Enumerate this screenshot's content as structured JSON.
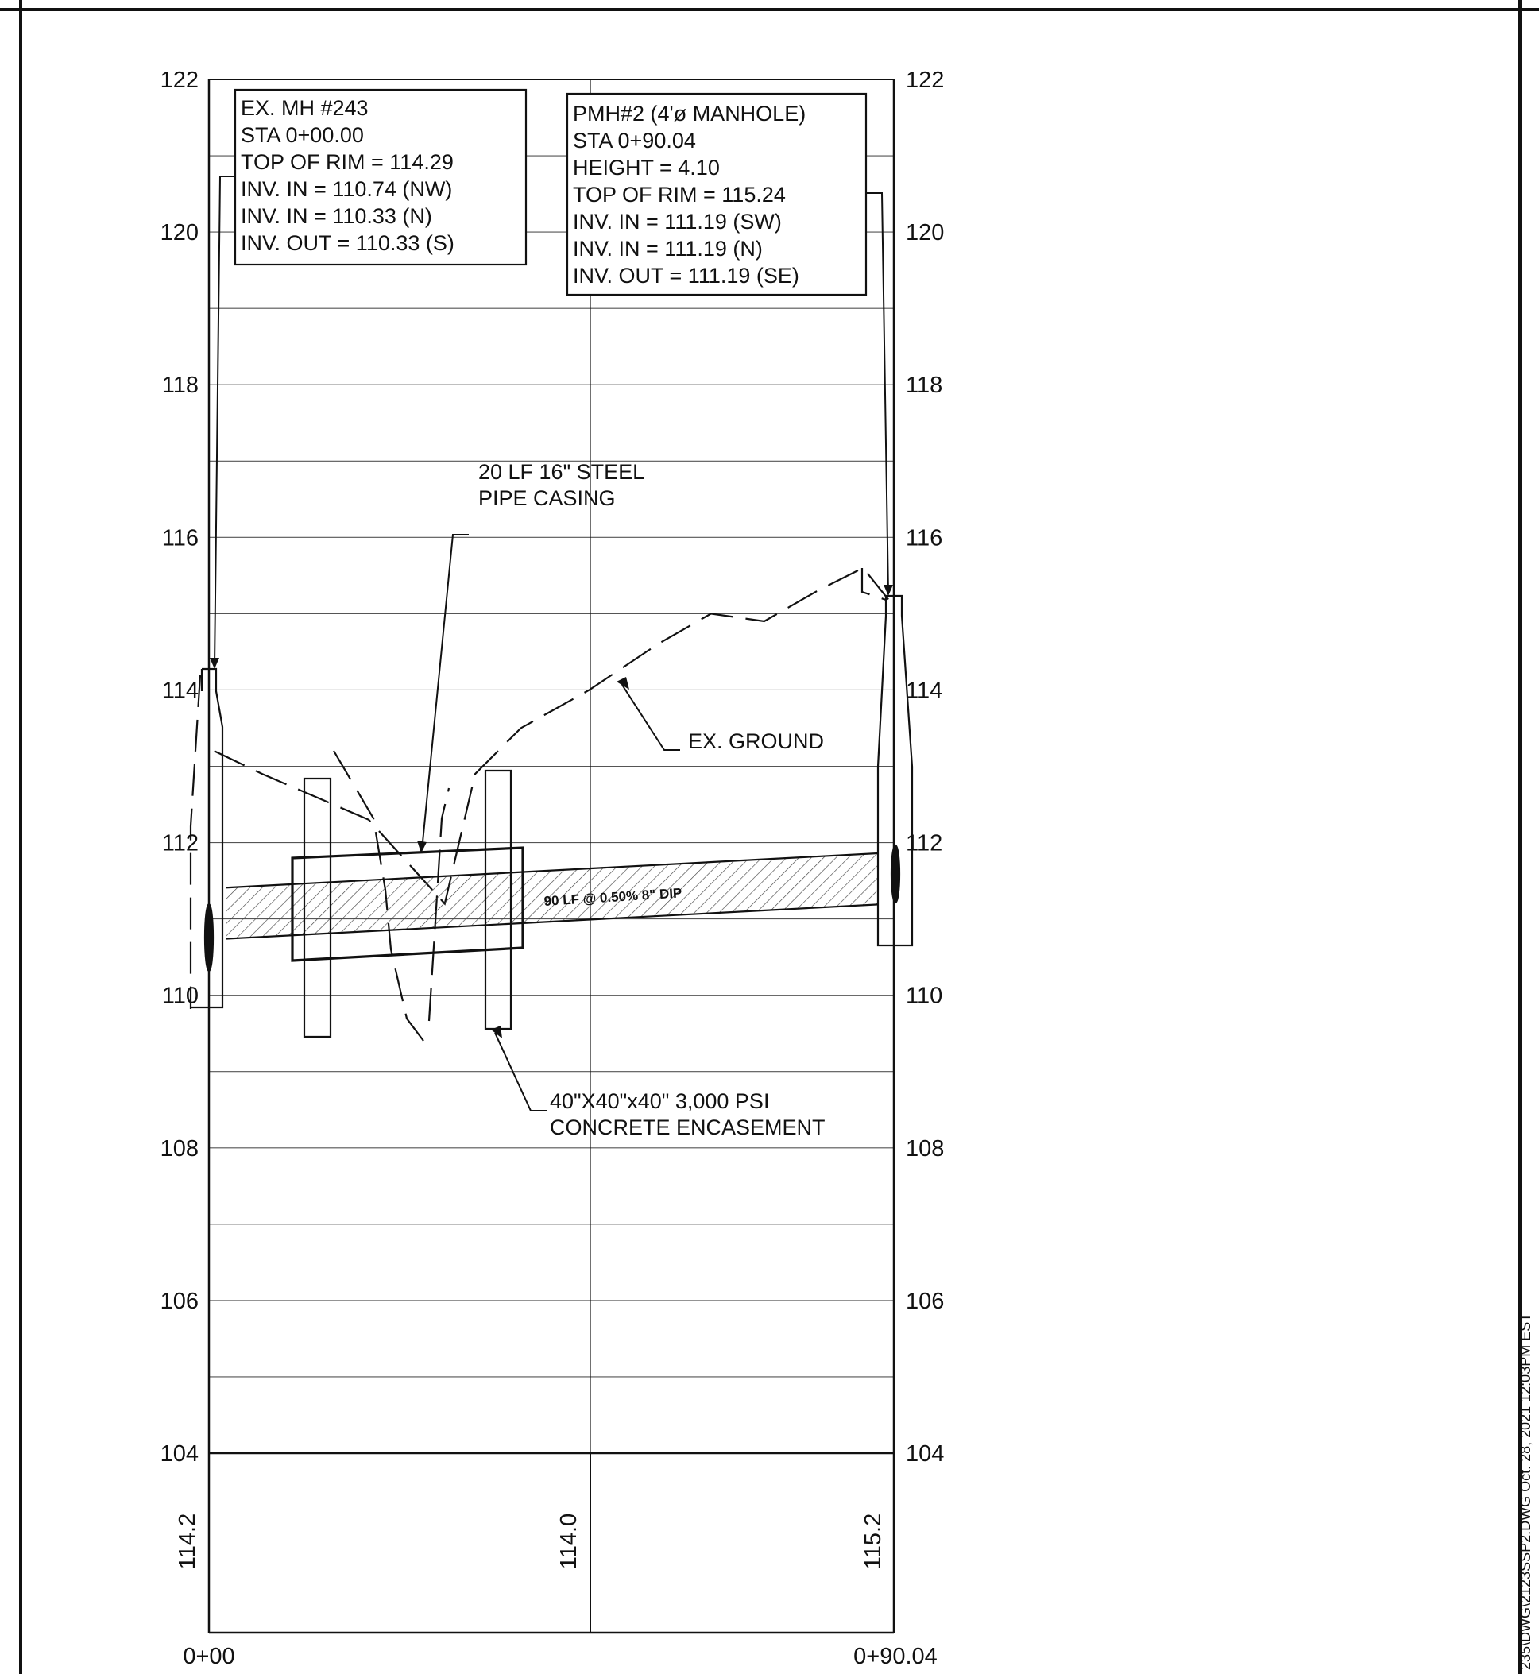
{
  "chart_data": {
    "type": "profile",
    "y_axis": {
      "ticks_left": [
        "122",
        "120",
        "118",
        "116",
        "114",
        "112",
        "110",
        "108",
        "106",
        "104"
      ],
      "ticks_right": [
        "122",
        "120",
        "118",
        "116",
        "114",
        "112",
        "110",
        "108",
        "106",
        "104"
      ],
      "range": [
        104,
        122
      ],
      "grid": true
    },
    "x_axis": {
      "stations": [
        "0+00",
        "0+90.04"
      ],
      "range_ft": [
        0,
        90.04
      ]
    },
    "ground_elevation_labels": [
      "114.2",
      "114.0",
      "115.2"
    ],
    "ex_ground_profile": [
      [
        0.7,
        113.2
      ],
      [
        7,
        112.9
      ],
      [
        14,
        112.6
      ],
      [
        21,
        112.3
      ],
      [
        31,
        111.2
      ],
      [
        35,
        112.9
      ],
      [
        41,
        113.5
      ],
      [
        50,
        114.0
      ],
      [
        59,
        114.6
      ],
      [
        66,
        115.0
      ],
      [
        73,
        114.9
      ],
      [
        80,
        115.3
      ],
      [
        86,
        115.6
      ],
      [
        90,
        115.1
      ]
    ],
    "pipe": {
      "label": "90 LF @ 0.50% 8\" DIP",
      "start_invert": 110.74,
      "end_invert": 111.19
    }
  },
  "callouts": {
    "mh243": [
      "EX. MH #243",
      "STA 0+00.00",
      "TOP OF RIM = 114.29",
      "INV. IN = 110.74 (NW)",
      "INV. IN = 110.33 (N)",
      "INV. OUT = 110.33 (S)"
    ],
    "pmh2": [
      "PMH#2 (4'ø  MANHOLE)",
      "STA 0+90.04",
      "HEIGHT = 4.10",
      "TOP OF RIM = 115.24",
      "INV. IN = 111.19 (SW)",
      "INV. IN = 111.19 (N)",
      "INV. OUT = 111.19 (SE)"
    ],
    "casing": [
      "20 LF 16\" STEEL",
      "PIPE CASING"
    ],
    "ground": [
      "EX. GROUND"
    ],
    "encasement": [
      "40\"X40\"x40\" 3,000 PSI",
      "CONCRETE ENCASEMENT"
    ]
  },
  "side_stamp": "235\\DWG\\2123SSP2.DWG  Oct. 28, 2021  12:03PM  EST"
}
